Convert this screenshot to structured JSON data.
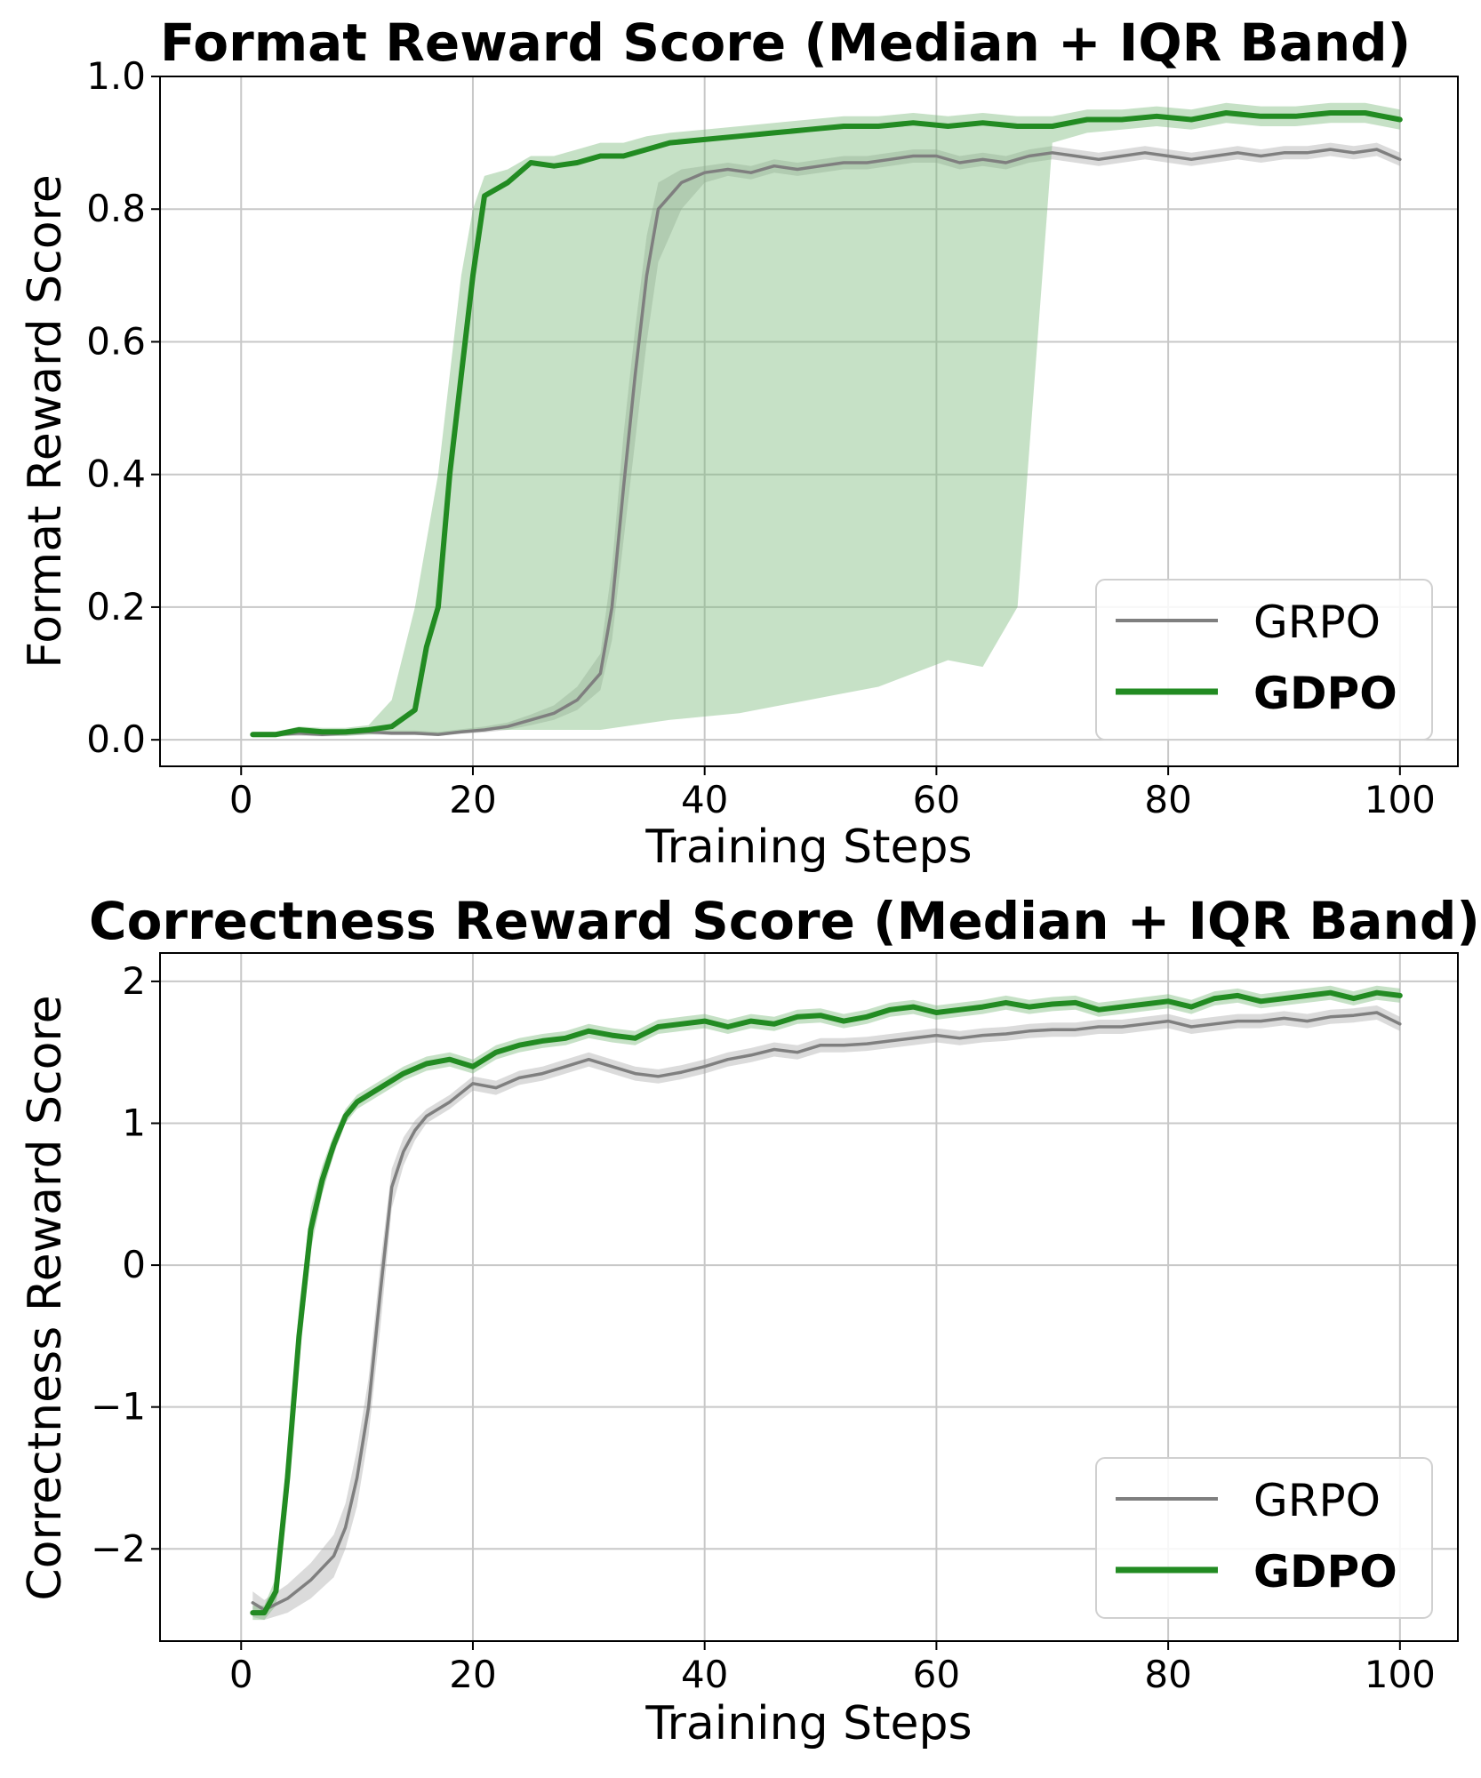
{
  "chart_data": [
    {
      "type": "line",
      "title": "Format Reward Score (Median + IQR Band)",
      "xlabel": "Training Steps",
      "ylabel": "Format Reward Score",
      "xlim": [
        -7,
        105
      ],
      "ylim": [
        -0.04,
        1.0
      ],
      "xticks": [
        0,
        20,
        40,
        60,
        80,
        100
      ],
      "yticks": [
        0.0,
        0.2,
        0.4,
        0.6,
        0.8,
        1.0
      ],
      "xtick_labels": [
        "0",
        "20",
        "40",
        "60",
        "80",
        "100"
      ],
      "ytick_labels": [
        "0.0",
        "0.2",
        "0.4",
        "0.6",
        "0.8",
        "1.0"
      ],
      "grid": true,
      "legend_position": "lower-right",
      "series": [
        {
          "name": "GRPO",
          "color": "#7f7f7f",
          "band_color": "#a6a6a6",
          "x": [
            1,
            3,
            5,
            7,
            9,
            11,
            13,
            15,
            17,
            19,
            21,
            23,
            25,
            27,
            29,
            31,
            32,
            33,
            34,
            35,
            36,
            37,
            38,
            40,
            42,
            44,
            46,
            48,
            50,
            52,
            54,
            56,
            58,
            60,
            62,
            64,
            66,
            68,
            70,
            72,
            74,
            76,
            78,
            80,
            82,
            84,
            86,
            88,
            90,
            92,
            94,
            96,
            98,
            100
          ],
          "values": [
            0.008,
            0.008,
            0.01,
            0.008,
            0.01,
            0.012,
            0.01,
            0.01,
            0.008,
            0.012,
            0.015,
            0.02,
            0.03,
            0.04,
            0.06,
            0.1,
            0.2,
            0.38,
            0.55,
            0.7,
            0.8,
            0.82,
            0.84,
            0.855,
            0.86,
            0.855,
            0.865,
            0.86,
            0.865,
            0.87,
            0.87,
            0.875,
            0.88,
            0.88,
            0.87,
            0.875,
            0.87,
            0.88,
            0.885,
            0.88,
            0.875,
            0.88,
            0.885,
            0.88,
            0.875,
            0.88,
            0.885,
            0.88,
            0.885,
            0.885,
            0.89,
            0.885,
            0.89,
            0.875
          ],
          "q1": [
            0.005,
            0.005,
            0.006,
            0.005,
            0.006,
            0.008,
            0.007,
            0.007,
            0.006,
            0.009,
            0.011,
            0.015,
            0.022,
            0.03,
            0.045,
            0.075,
            0.15,
            0.3,
            0.45,
            0.6,
            0.72,
            0.76,
            0.8,
            0.84,
            0.85,
            0.845,
            0.855,
            0.85,
            0.855,
            0.86,
            0.86,
            0.865,
            0.87,
            0.87,
            0.86,
            0.865,
            0.86,
            0.87,
            0.875,
            0.87,
            0.865,
            0.87,
            0.875,
            0.87,
            0.865,
            0.87,
            0.875,
            0.87,
            0.875,
            0.875,
            0.88,
            0.875,
            0.88,
            0.865
          ],
          "q3": [
            0.012,
            0.012,
            0.014,
            0.012,
            0.014,
            0.016,
            0.014,
            0.014,
            0.012,
            0.016,
            0.02,
            0.026,
            0.038,
            0.052,
            0.08,
            0.13,
            0.26,
            0.46,
            0.62,
            0.76,
            0.84,
            0.85,
            0.86,
            0.865,
            0.87,
            0.865,
            0.875,
            0.87,
            0.875,
            0.88,
            0.88,
            0.885,
            0.89,
            0.89,
            0.88,
            0.885,
            0.88,
            0.89,
            0.895,
            0.89,
            0.885,
            0.89,
            0.895,
            0.89,
            0.885,
            0.89,
            0.895,
            0.89,
            0.895,
            0.895,
            0.9,
            0.895,
            0.9,
            0.885
          ]
        },
        {
          "name": "GDPO",
          "color": "#228b22",
          "band_color": "#76b876",
          "x": [
            1,
            3,
            5,
            7,
            9,
            11,
            13,
            15,
            16,
            17,
            18,
            19,
            20,
            21,
            23,
            25,
            27,
            29,
            31,
            33,
            35,
            37,
            40,
            43,
            46,
            49,
            52,
            55,
            58,
            61,
            64,
            67,
            70,
            73,
            76,
            79,
            82,
            85,
            88,
            91,
            94,
            97,
            100
          ],
          "values": [
            0.008,
            0.008,
            0.015,
            0.012,
            0.012,
            0.015,
            0.02,
            0.045,
            0.14,
            0.2,
            0.4,
            0.55,
            0.7,
            0.82,
            0.84,
            0.87,
            0.865,
            0.87,
            0.88,
            0.88,
            0.89,
            0.9,
            0.905,
            0.91,
            0.915,
            0.92,
            0.925,
            0.925,
            0.93,
            0.925,
            0.93,
            0.925,
            0.925,
            0.935,
            0.935,
            0.94,
            0.935,
            0.945,
            0.94,
            0.94,
            0.945,
            0.945,
            0.935
          ],
          "q1": [
            0.004,
            0.004,
            0.008,
            0.006,
            0.006,
            0.008,
            0.01,
            0.01,
            0.01,
            0.01,
            0.01,
            0.01,
            0.012,
            0.015,
            0.015,
            0.015,
            0.015,
            0.015,
            0.015,
            0.02,
            0.025,
            0.03,
            0.035,
            0.04,
            0.05,
            0.06,
            0.07,
            0.08,
            0.1,
            0.12,
            0.11,
            0.2,
            0.9,
            0.915,
            0.92,
            0.925,
            0.92,
            0.93,
            0.925,
            0.925,
            0.93,
            0.93,
            0.92
          ],
          "q3": [
            0.012,
            0.012,
            0.02,
            0.018,
            0.018,
            0.022,
            0.06,
            0.2,
            0.3,
            0.4,
            0.55,
            0.7,
            0.8,
            0.85,
            0.86,
            0.88,
            0.88,
            0.89,
            0.9,
            0.9,
            0.91,
            0.915,
            0.92,
            0.925,
            0.93,
            0.935,
            0.94,
            0.94,
            0.945,
            0.94,
            0.945,
            0.94,
            0.94,
            0.95,
            0.95,
            0.955,
            0.95,
            0.96,
            0.955,
            0.955,
            0.96,
            0.96,
            0.95
          ]
        }
      ]
    },
    {
      "type": "line",
      "title": "Correctness Reward Score (Median + IQR Band)",
      "xlabel": "Training Steps",
      "ylabel": "Correctness Reward Score",
      "xlim": [
        -7,
        105
      ],
      "ylim": [
        -2.65,
        2.2
      ],
      "xticks": [
        0,
        20,
        40,
        60,
        80,
        100
      ],
      "yticks": [
        -2,
        -1,
        0,
        1,
        2
      ],
      "xtick_labels": [
        "0",
        "20",
        "40",
        "60",
        "80",
        "100"
      ],
      "ytick_labels": [
        "−2",
        "−1",
        "0",
        "1",
        "2"
      ],
      "grid": true,
      "legend_position": "lower-right",
      "series": [
        {
          "name": "GRPO",
          "color": "#7f7f7f",
          "band_color": "#a6a6a6",
          "x": [
            1,
            2,
            4,
            6,
            8,
            9,
            10,
            11,
            12,
            13,
            14,
            15,
            16,
            18,
            20,
            22,
            24,
            26,
            28,
            30,
            32,
            34,
            36,
            38,
            40,
            42,
            44,
            46,
            48,
            50,
            52,
            54,
            56,
            58,
            60,
            62,
            64,
            66,
            68,
            70,
            72,
            74,
            76,
            78,
            80,
            82,
            84,
            86,
            88,
            90,
            92,
            94,
            96,
            98,
            100
          ],
          "values": [
            -2.38,
            -2.43,
            -2.35,
            -2.22,
            -2.05,
            -1.85,
            -1.5,
            -1.0,
            -0.2,
            0.55,
            0.8,
            0.95,
            1.05,
            1.15,
            1.28,
            1.25,
            1.32,
            1.35,
            1.4,
            1.45,
            1.4,
            1.35,
            1.33,
            1.36,
            1.4,
            1.45,
            1.48,
            1.52,
            1.5,
            1.55,
            1.55,
            1.56,
            1.58,
            1.6,
            1.62,
            1.6,
            1.62,
            1.63,
            1.65,
            1.66,
            1.66,
            1.68,
            1.68,
            1.7,
            1.72,
            1.68,
            1.7,
            1.72,
            1.72,
            1.74,
            1.72,
            1.75,
            1.76,
            1.78,
            1.7
          ],
          "q1": [
            -2.48,
            -2.5,
            -2.45,
            -2.35,
            -2.2,
            -2.0,
            -1.7,
            -1.2,
            -0.45,
            0.4,
            0.7,
            0.88,
            1.0,
            1.1,
            1.23,
            1.2,
            1.27,
            1.3,
            1.35,
            1.4,
            1.35,
            1.3,
            1.28,
            1.31,
            1.35,
            1.4,
            1.43,
            1.47,
            1.45,
            1.5,
            1.5,
            1.51,
            1.53,
            1.55,
            1.57,
            1.55,
            1.57,
            1.58,
            1.6,
            1.61,
            1.61,
            1.63,
            1.63,
            1.65,
            1.67,
            1.63,
            1.65,
            1.67,
            1.67,
            1.69,
            1.67,
            1.7,
            1.71,
            1.73,
            1.65
          ],
          "q3": [
            -2.3,
            -2.36,
            -2.25,
            -2.1,
            -1.9,
            -1.68,
            -1.3,
            -0.8,
            0.0,
            0.68,
            0.9,
            1.02,
            1.1,
            1.2,
            1.33,
            1.3,
            1.37,
            1.4,
            1.45,
            1.5,
            1.45,
            1.4,
            1.38,
            1.41,
            1.45,
            1.5,
            1.53,
            1.57,
            1.55,
            1.6,
            1.6,
            1.61,
            1.63,
            1.65,
            1.67,
            1.65,
            1.67,
            1.68,
            1.7,
            1.71,
            1.71,
            1.73,
            1.73,
            1.75,
            1.77,
            1.73,
            1.75,
            1.77,
            1.77,
            1.79,
            1.77,
            1.8,
            1.81,
            1.83,
            1.75
          ]
        },
        {
          "name": "GDPO",
          "color": "#228b22",
          "band_color": "#76b876",
          "x": [
            1,
            2,
            3,
            4,
            5,
            6,
            7,
            8,
            9,
            10,
            12,
            14,
            16,
            18,
            20,
            22,
            24,
            26,
            28,
            30,
            32,
            34,
            36,
            38,
            40,
            42,
            44,
            46,
            48,
            50,
            52,
            54,
            56,
            58,
            60,
            62,
            64,
            66,
            68,
            70,
            72,
            74,
            76,
            78,
            80,
            82,
            84,
            86,
            88,
            90,
            92,
            94,
            96,
            98,
            100
          ],
          "values": [
            -2.45,
            -2.45,
            -2.3,
            -1.5,
            -0.5,
            0.25,
            0.6,
            0.85,
            1.05,
            1.15,
            1.25,
            1.35,
            1.42,
            1.45,
            1.4,
            1.5,
            1.55,
            1.58,
            1.6,
            1.65,
            1.62,
            1.6,
            1.68,
            1.7,
            1.72,
            1.68,
            1.72,
            1.7,
            1.75,
            1.76,
            1.72,
            1.75,
            1.8,
            1.82,
            1.78,
            1.8,
            1.82,
            1.85,
            1.82,
            1.84,
            1.85,
            1.8,
            1.82,
            1.84,
            1.86,
            1.82,
            1.88,
            1.9,
            1.86,
            1.88,
            1.9,
            1.92,
            1.88,
            1.92,
            1.9
          ],
          "q1": [
            -2.5,
            -2.5,
            -2.4,
            -1.7,
            -0.7,
            0.1,
            0.5,
            0.78,
            1.0,
            1.1,
            1.2,
            1.3,
            1.37,
            1.4,
            1.35,
            1.45,
            1.5,
            1.53,
            1.55,
            1.6,
            1.57,
            1.55,
            1.63,
            1.65,
            1.67,
            1.63,
            1.67,
            1.65,
            1.7,
            1.71,
            1.67,
            1.7,
            1.75,
            1.77,
            1.73,
            1.75,
            1.77,
            1.8,
            1.77,
            1.79,
            1.8,
            1.75,
            1.77,
            1.79,
            1.81,
            1.77,
            1.83,
            1.85,
            1.81,
            1.83,
            1.85,
            1.87,
            1.83,
            1.87,
            1.85
          ],
          "q3": [
            -2.4,
            -2.4,
            -2.2,
            -1.3,
            -0.3,
            0.4,
            0.7,
            0.92,
            1.1,
            1.2,
            1.3,
            1.4,
            1.47,
            1.5,
            1.45,
            1.55,
            1.6,
            1.63,
            1.65,
            1.7,
            1.67,
            1.65,
            1.73,
            1.75,
            1.77,
            1.73,
            1.77,
            1.75,
            1.8,
            1.81,
            1.77,
            1.8,
            1.85,
            1.87,
            1.83,
            1.85,
            1.87,
            1.9,
            1.87,
            1.89,
            1.9,
            1.85,
            1.87,
            1.89,
            1.91,
            1.87,
            1.93,
            1.95,
            1.91,
            1.93,
            1.95,
            1.97,
            1.93,
            1.97,
            1.95
          ]
        }
      ]
    }
  ]
}
